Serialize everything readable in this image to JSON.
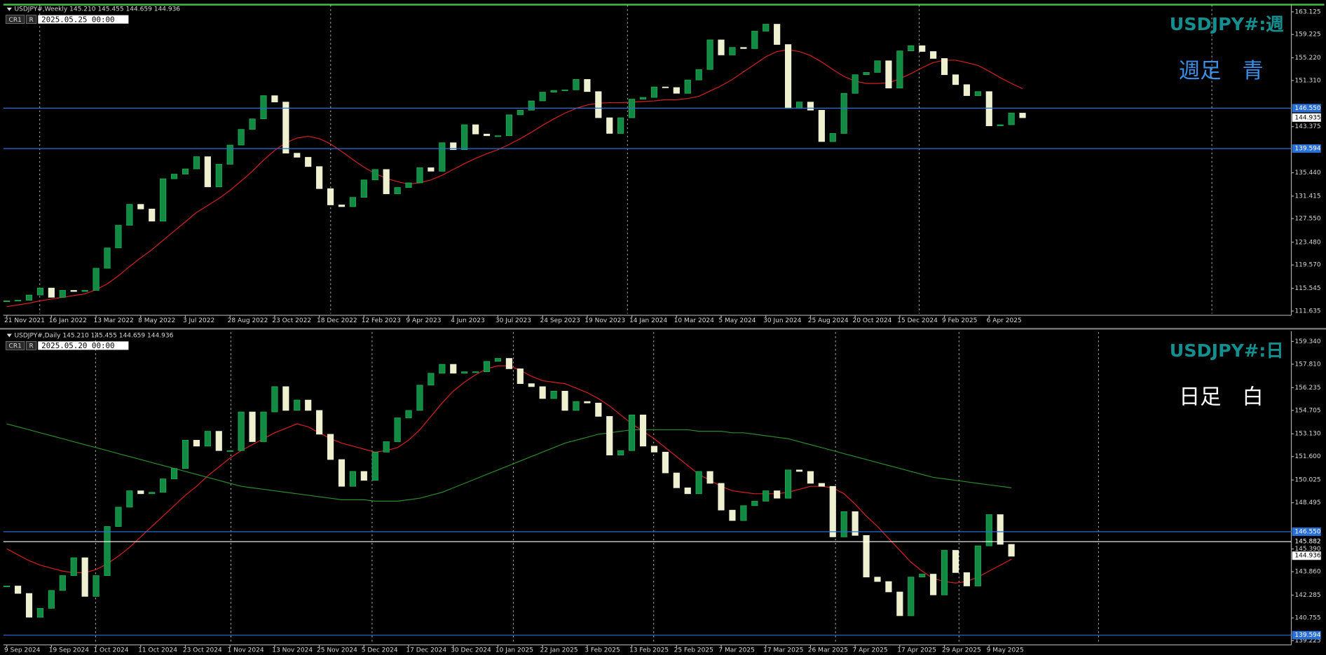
{
  "chart_data": [
    {
      "type": "candlestick",
      "header": "USDJPY#,Weekly 145.210 145.455 144.659 144.936",
      "time": "2025.05.25 00:00",
      "buttons": [
        "CR1",
        "R"
      ],
      "title": "USDJPY#:週",
      "subtitle": "週足　青",
      "subtitle_color": "#3a8fe8",
      "up_color": "#138a43",
      "down_color": "#eef0cf",
      "ylim": [
        111.2,
        164.0
      ],
      "yticks": [
        163.125,
        159.225,
        {
          "value": 155.22,
          "label": "155.220"
        },
        {
          "value": 151.31,
          "label": "151.310"
        },
        143.375,
        {
          "value": 135.44,
          "label": "135.440"
        },
        131.415,
        {
          "value": 127.55,
          "label": "127.550"
        },
        {
          "value": 123.48,
          "label": "123.480"
        },
        {
          "value": 119.57,
          "label": "119.570"
        },
        115.545,
        111.635
      ],
      "x_labels": [
        "21 Nov 2021",
        "16 Jan 2022",
        "13 Mar 2022",
        "8 May 2022",
        "3 Jul 2022",
        "28 Aug 2022",
        "23 Oct 2022",
        "18 Dec 2022",
        "12 Feb 2023",
        "9 Apr 2023",
        "4 Jun 2023",
        "30 Jul 2023",
        "24 Sep 2023",
        "19 Nov 2023",
        "14 Jan 2024",
        "10 Mar 2024",
        "5 May 2024",
        "30 Jun 2024",
        "25 Aug 2024",
        "20 Oct 2024",
        "15 Dec 2024",
        "9 Feb 2025",
        "6 Apr 2025"
      ],
      "levels": [
        {
          "value": 146.55,
          "label": "146.550",
          "color": "#2a6fd6",
          "line": true,
          "box": true
        },
        {
          "value": 139.594,
          "color": "#2a6fd6",
          "line": true,
          "box": true
        },
        {
          "value": 144.935,
          "color": "#ffffff",
          "line": false,
          "box": true
        }
      ],
      "close": [
        113.4,
        113.5,
        114.4,
        115.6,
        114.0,
        115.2,
        115.0,
        115.2,
        119.0,
        122.5,
        126.4,
        130.0,
        129.2,
        127.1,
        134.4,
        135.2,
        136.1,
        138.2,
        133.0,
        136.9,
        140.2,
        142.9,
        144.7,
        148.7,
        147.6,
        138.8,
        138.1,
        136.5,
        132.7,
        129.9,
        129.6,
        131.2,
        134.2,
        136.0,
        131.8,
        132.9,
        133.7,
        136.3,
        135.7,
        140.6,
        139.4,
        143.7,
        142.1,
        141.8,
        141.8,
        145.4,
        146.2,
        147.8,
        149.3,
        149.6,
        149.7,
        151.5,
        149.4,
        144.9,
        142.2,
        144.9,
        148.1,
        148.4,
        150.2,
        150.1,
        149.1,
        151.4,
        153.2,
        158.3,
        155.7,
        157.0,
        156.8,
        159.8,
        161.0,
        157.5,
        146.5,
        147.6,
        146.2,
        140.8,
        142.2,
        149.1,
        152.3,
        152.7,
        154.7,
        150.0,
        156.4,
        157.3,
        156.3,
        155.1,
        152.3,
        150.6,
        148.7,
        149.4,
        143.5,
        143.7,
        145.7,
        144.9
      ],
      "series": [
        {
          "color": "#d42020",
          "values": [
            112.4,
            112.7,
            113.0,
            113.4,
            113.7,
            114.0,
            114.3,
            114.6,
            115.3,
            116.3,
            117.7,
            119.3,
            120.8,
            122.2,
            123.8,
            125.4,
            127.0,
            128.6,
            129.8,
            131.0,
            132.4,
            134.0,
            135.7,
            137.6,
            139.3,
            140.6,
            141.4,
            141.7,
            141.3,
            140.4,
            139.1,
            137.7,
            136.4,
            135.3,
            134.5,
            133.9,
            133.5,
            133.7,
            134.2,
            135.0,
            136.0,
            137.0,
            137.9,
            138.7,
            139.4,
            140.3,
            141.3,
            142.4,
            143.6,
            144.7,
            145.7,
            146.5,
            147.1,
            147.4,
            147.5,
            147.5,
            147.6,
            147.7,
            147.8,
            148.0,
            148.0,
            148.2,
            148.6,
            149.5,
            150.4,
            151.5,
            152.8,
            154.1,
            155.4,
            156.3,
            156.6,
            156.3,
            155.6,
            154.5,
            153.2,
            152.0,
            151.2,
            150.8,
            150.8,
            150.9,
            151.6,
            152.5,
            153.5,
            154.4,
            154.8,
            154.8,
            154.4,
            153.9,
            152.9,
            151.8,
            150.8,
            149.9
          ]
        }
      ]
    },
    {
      "type": "candlestick",
      "header": "USDJPY#,Daily 145.210 145.455 144.659 144.936",
      "time": "2025.05.20 00:00",
      "buttons": [
        "CR1",
        "R"
      ],
      "title": "USDJPY#:日",
      "subtitle": "日足　白",
      "subtitle_color": "#ffffff",
      "up_color": "#138a43",
      "down_color": "#eef0cf",
      "ylim": [
        139.055,
        159.85
      ],
      "yticks": [
        {
          "value": 159.34,
          "label": "159.340"
        },
        {
          "value": 157.81,
          "label": "157.810"
        },
        156.235,
        154.705,
        {
          "value": 153.13,
          "label": "153.130"
        },
        {
          "value": 151.6,
          "label": "151.600"
        },
        150.025,
        148.495,
        {
          "value": 145.39,
          "label": "145.390"
        },
        {
          "value": 143.86,
          "label": "143.860"
        },
        142.285,
        140.755,
        139.225
      ],
      "x_labels": [
        "9 Sep 2024",
        "19 Sep 2024",
        "1 Oct 2024",
        "11 Oct 2024",
        "23 Oct 2024",
        "1 Nov 2024",
        "13 Nov 2024",
        "25 Nov 2024",
        "5 Dec 2024",
        "17 Dec 2024",
        "30 Dec 2024",
        "10 Jan 2025",
        "22 Jan 2025",
        "3 Feb 2025",
        "13 Feb 2025",
        "25 Feb 2025",
        "7 Mar 2025",
        "17 Mar 2025",
        "26 Mar 2025",
        "7 Apr 2025",
        "17 Apr 2025",
        "29 Apr 2025",
        "9 May 2025"
      ],
      "levels": [
        {
          "value": 146.55,
          "label": "146.550",
          "color": "#2a6fd6",
          "line": true,
          "box": true
        },
        {
          "value": 145.882,
          "color": "#ffffff",
          "line": true,
          "box": false
        },
        {
          "value": 144.936,
          "color": "#ffffff",
          "line": false,
          "box": true
        },
        {
          "value": 139.594,
          "color": "#2a6fd6",
          "line": true,
          "box": true
        }
      ],
      "close": [
        142.9,
        142.4,
        140.8,
        141.4,
        142.6,
        143.6,
        144.8,
        142.2,
        143.6,
        146.9,
        148.2,
        149.3,
        149.1,
        149.2,
        150.1,
        150.8,
        152.7,
        152.3,
        153.3,
        152.0,
        152.0,
        154.6,
        152.6,
        154.6,
        156.3,
        154.7,
        155.4,
        154.7,
        153.1,
        151.4,
        149.6,
        150.6,
        150.0,
        151.9,
        152.6,
        154.2,
        154.7,
        156.4,
        157.2,
        157.8,
        157.2,
        157.3,
        157.3,
        158.0,
        158.2,
        157.5,
        156.5,
        156.3,
        155.5,
        156.0,
        154.7,
        155.3,
        155.2,
        154.3,
        151.7,
        152.0,
        154.4,
        152.3,
        151.9,
        150.5,
        149.5,
        149.1,
        150.6,
        149.8,
        148.0,
        147.3,
        148.3,
        148.6,
        149.3,
        148.8,
        150.7,
        150.6,
        149.8,
        149.6,
        146.2,
        147.9,
        146.3,
        143.5,
        143.2,
        142.5,
        140.9,
        143.5,
        143.7,
        142.3,
        145.3,
        143.8,
        142.9,
        145.6,
        147.7,
        145.7,
        144.9
      ],
      "series": [
        {
          "color": "#d42020",
          "values": [
            145.4,
            145.0,
            144.6,
            144.3,
            144.1,
            143.9,
            143.8,
            143.8,
            144.0,
            144.4,
            144.9,
            145.5,
            146.2,
            146.9,
            147.6,
            148.3,
            149.0,
            149.6,
            150.3,
            150.9,
            151.5,
            152.0,
            152.4,
            152.8,
            153.2,
            153.5,
            153.8,
            153.6,
            153.2,
            152.8,
            152.5,
            152.3,
            152.1,
            151.9,
            152.0,
            152.2,
            152.7,
            153.4,
            154.3,
            155.2,
            156.0,
            156.6,
            157.1,
            157.5,
            157.7,
            157.7,
            157.4,
            157.0,
            156.7,
            156.6,
            156.5,
            156.2,
            155.9,
            155.5,
            155.0,
            154.4,
            153.8,
            153.3,
            152.8,
            152.2,
            151.6,
            151.0,
            150.4,
            150.0,
            149.6,
            149.3,
            149.2,
            149.1,
            149.1,
            149.1,
            149.2,
            149.4,
            149.6,
            149.6,
            149.5,
            149.1,
            148.4,
            147.6,
            146.9,
            146.1,
            145.3,
            144.5,
            143.9,
            143.4,
            143.2,
            143.1,
            143.2,
            143.5,
            143.9,
            144.3,
            144.7
          ]
        },
        {
          "color": "#2c8a2c",
          "values": [
            153.8,
            153.6,
            153.4,
            153.2,
            153.0,
            152.8,
            152.6,
            152.4,
            152.2,
            152.0,
            151.8,
            151.6,
            151.4,
            151.2,
            151.0,
            150.8,
            150.6,
            150.4,
            150.2,
            150.0,
            149.8,
            149.6,
            149.5,
            149.4,
            149.3,
            149.2,
            149.1,
            149.0,
            148.9,
            148.8,
            148.7,
            148.7,
            148.7,
            148.6,
            148.6,
            148.6,
            148.7,
            148.8,
            149.0,
            149.2,
            149.5,
            149.8,
            150.1,
            150.4,
            150.7,
            151.0,
            151.3,
            151.6,
            151.9,
            152.2,
            152.5,
            152.7,
            152.9,
            153.1,
            153.2,
            153.3,
            153.4,
            153.4,
            153.4,
            153.4,
            153.4,
            153.4,
            153.3,
            153.3,
            153.3,
            153.2,
            153.2,
            153.1,
            153.0,
            152.9,
            152.8,
            152.6,
            152.4,
            152.2,
            152.0,
            151.8,
            151.6,
            151.4,
            151.2,
            151.0,
            150.8,
            150.6,
            150.4,
            150.2,
            150.1,
            150.0,
            149.9,
            149.8,
            149.7,
            149.6,
            149.5
          ]
        }
      ]
    }
  ]
}
